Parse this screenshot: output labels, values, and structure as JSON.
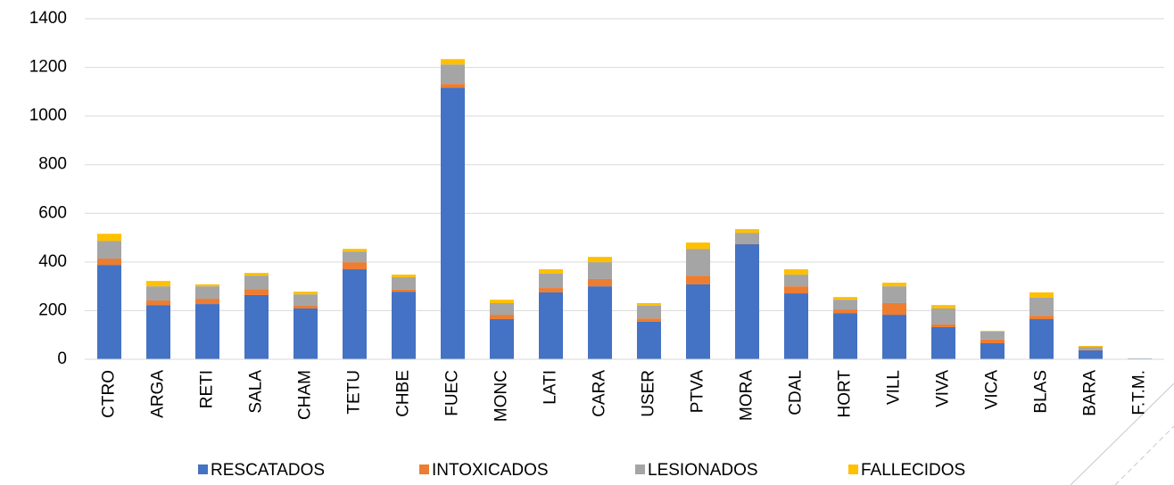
{
  "chart_data": {
    "type": "stacked_bar",
    "categories": [
      "CTRO",
      "ARGA",
      "RETI",
      "SALA",
      "CHAM",
      "TETU",
      "CHBE",
      "FUEC",
      "MONC",
      "LATI",
      "CARA",
      "USER",
      "PTVA",
      "MORA",
      "CDAL",
      "HORT",
      "VILL",
      "VIVA",
      "VICA",
      "BLAS",
      "BARA",
      "F.T.M."
    ],
    "series": [
      {
        "name": "RESCATADOS",
        "color": "#4472c4",
        "values": [
          388,
          223,
          227,
          264,
          209,
          370,
          278,
          1117,
          165,
          275,
          300,
          154,
          308,
          473,
          271,
          190,
          183,
          132,
          66,
          165,
          37,
          3
        ]
      },
      {
        "name": "INTOXICADOS",
        "color": "#ed7d31",
        "values": [
          26,
          19,
          22,
          25,
          11,
          29,
          8,
          15,
          18,
          18,
          30,
          14,
          36,
          3,
          29,
          15,
          48,
          11,
          15,
          14,
          3,
          0
        ]
      },
      {
        "name": "LESIONADOS",
        "color": "#a5a5a5",
        "values": [
          73,
          58,
          51,
          55,
          47,
          44,
          51,
          80,
          48,
          59,
          69,
          52,
          110,
          44,
          48,
          40,
          69,
          66,
          33,
          74,
          11,
          1
        ]
      },
      {
        "name": "FALLECIDOS",
        "color": "#ffc000",
        "values": [
          29,
          22,
          8,
          11,
          11,
          11,
          11,
          22,
          14,
          18,
          22,
          11,
          26,
          15,
          22,
          11,
          15,
          14,
          3,
          22,
          4,
          0
        ]
      }
    ],
    "ylim": [
      0,
      1400
    ],
    "yticks": [
      0,
      200,
      400,
      600,
      800,
      1000,
      1200,
      1400
    ],
    "grid": true,
    "legend": "bottom"
  }
}
